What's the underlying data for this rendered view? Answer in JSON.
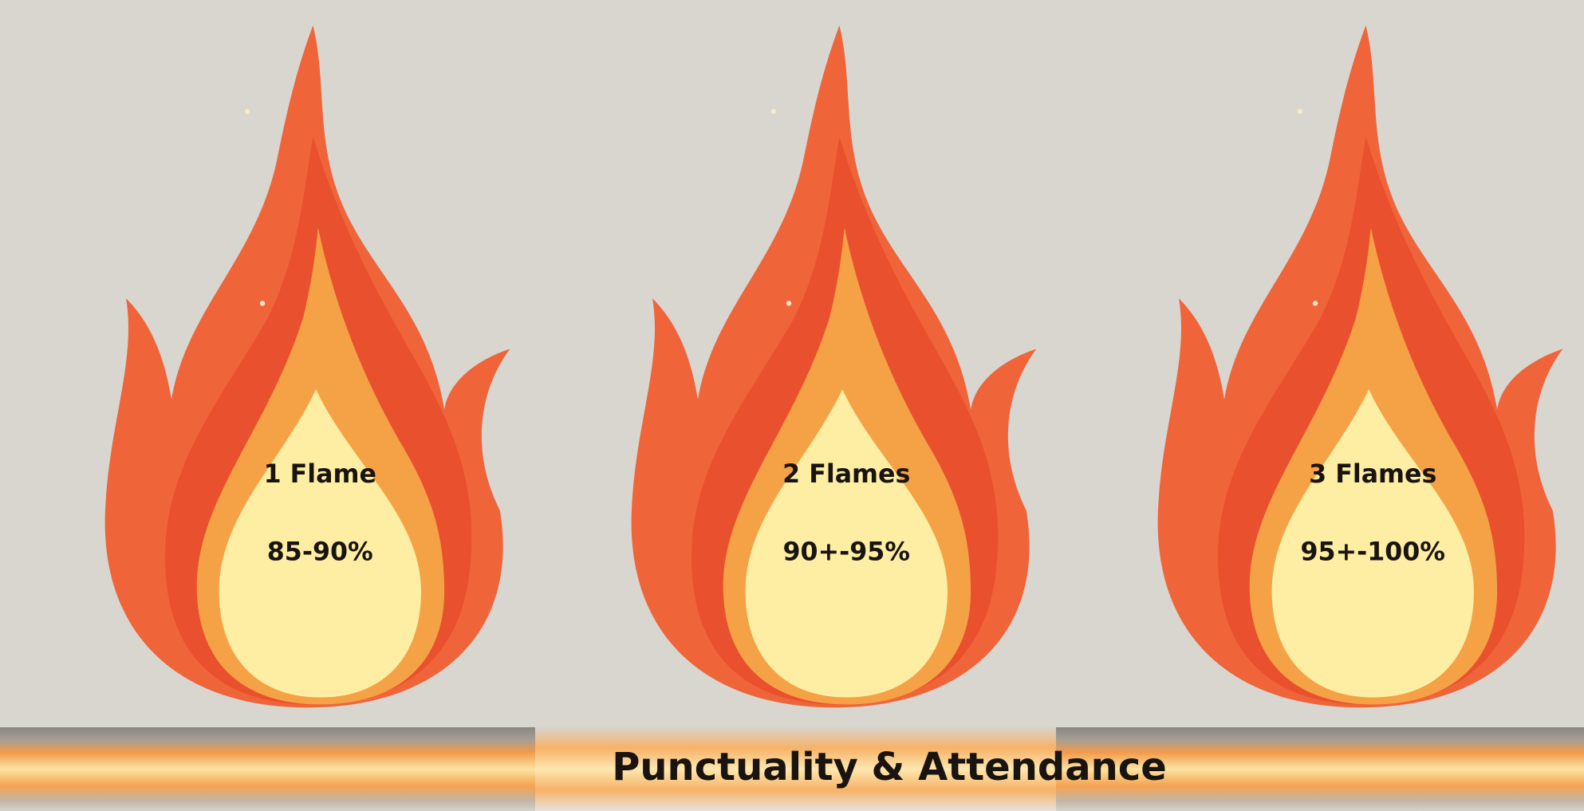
{
  "flames": [
    {
      "label": "1 Flame",
      "range": "85-90%"
    },
    {
      "label": "2 Flames",
      "range": "90+-95%"
    },
    {
      "label": "3 Flames",
      "range": "95+-100%"
    }
  ],
  "footer": {
    "title": "Punctuality & Attendance"
  }
}
